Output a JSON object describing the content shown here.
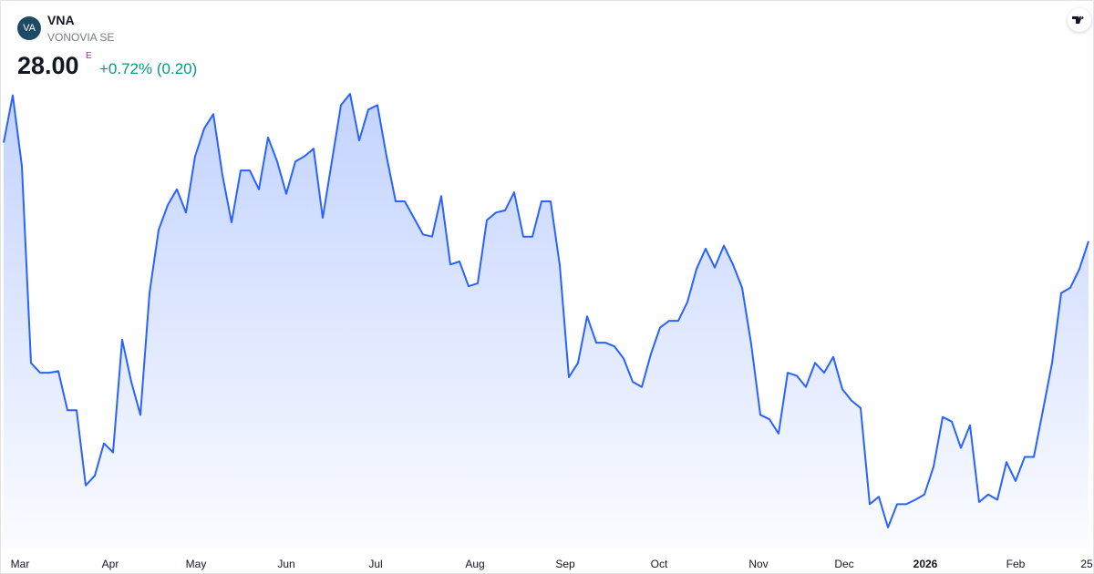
{
  "header": {
    "logo": "VA",
    "symbol": "VNA",
    "name": "VONOVIA SE",
    "price": "28.00",
    "price_flag": "E",
    "change": "+0.72% (0.20)"
  },
  "chart_data": {
    "type": "area",
    "color": "#2962ff",
    "values": [
      29.31,
      29.94,
      29.0,
      26.38,
      26.25,
      26.25,
      26.27,
      25.75,
      25.75,
      24.75,
      24.88,
      25.31,
      25.19,
      26.69,
      26.13,
      25.69,
      27.31,
      28.15,
      28.48,
      28.69,
      28.38,
      29.13,
      29.5,
      29.69,
      28.88,
      28.25,
      28.94,
      28.94,
      28.69,
      29.38,
      29.06,
      28.63,
      29.06,
      29.13,
      29.23,
      28.31,
      29.06,
      29.81,
      29.96,
      29.34,
      29.75,
      29.81,
      29.13,
      28.53,
      28.53,
      28.31,
      28.09,
      28.06,
      28.6,
      27.69,
      27.73,
      27.4,
      27.44,
      28.28,
      28.38,
      28.41,
      28.65,
      28.06,
      28.06,
      28.53,
      28.53,
      27.68,
      26.19,
      26.38,
      27.0,
      26.65,
      26.65,
      26.6,
      26.44,
      26.13,
      26.06,
      26.5,
      26.85,
      26.94,
      26.94,
      27.19,
      27.63,
      27.9,
      27.65,
      27.94,
      27.69,
      27.38,
      26.63,
      25.69,
      25.63,
      25.44,
      26.25,
      26.21,
      26.06,
      26.38,
      26.25,
      26.46,
      26.03,
      25.88,
      25.78,
      24.5,
      24.6,
      24.19,
      24.5,
      24.5,
      24.56,
      24.63,
      25.0,
      25.66,
      25.6,
      25.25,
      25.55,
      24.53,
      24.63,
      24.56,
      25.06,
      24.81,
      25.13,
      25.13,
      25.75,
      26.38,
      27.31,
      27.38,
      27.63,
      28.0
    ],
    "xticks": [
      {
        "value": 1.8,
        "label": "Mar"
      },
      {
        "value": 11.7,
        "label": "Apr"
      },
      {
        "value": 21.1,
        "label": "May"
      },
      {
        "value": 31,
        "label": "Jun"
      },
      {
        "value": 40.8,
        "label": "Jul"
      },
      {
        "value": 51.7,
        "label": "Aug"
      },
      {
        "value": 61.6,
        "label": "Sep"
      },
      {
        "value": 71.9,
        "label": "Oct"
      },
      {
        "value": 82.8,
        "label": "Nov"
      },
      {
        "value": 92.2,
        "label": "Dec"
      },
      {
        "value": 101.1,
        "label": "2026"
      },
      {
        "value": 111,
        "label": "Feb"
      },
      {
        "value": 118.8,
        "label": "25"
      }
    ]
  }
}
